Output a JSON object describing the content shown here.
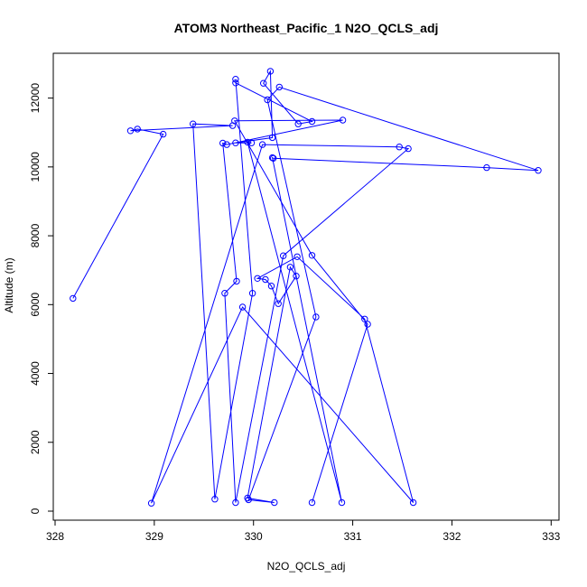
{
  "chart_data": {
    "type": "line",
    "title": "ATOM3 Northeast_Pacific_1 N2O_QCLS_adj",
    "xlabel": "N2O_QCLS_adj",
    "ylabel": "Altitude (m)",
    "xlim": [
      328,
      333
    ],
    "ylim": [
      0,
      13000
    ],
    "x_ticks": [
      328,
      329,
      330,
      331,
      332,
      333
    ],
    "y_ticks": [
      0,
      2000,
      4000,
      6000,
      8000,
      10000,
      12000
    ],
    "grid": false,
    "legend": "none",
    "color": "#0000ff",
    "series": [
      {
        "points": [
          [
            328.18,
            6180
          ],
          [
            329.09,
            10950
          ],
          [
            328.83,
            11100
          ],
          [
            328.76,
            11050
          ],
          [
            329.79,
            11200
          ],
          [
            329.39,
            11250
          ],
          [
            329.61,
            350
          ],
          [
            329.99,
            6330
          ],
          [
            329.82,
            12550
          ],
          [
            329.82,
            12440
          ],
          [
            330.59,
            11320
          ],
          [
            330.45,
            11250
          ],
          [
            330.1,
            12430
          ],
          [
            330.17,
            12780
          ],
          [
            330.19,
            10850
          ],
          [
            329.82,
            10700
          ],
          [
            329.98,
            10700
          ],
          [
            329.94,
            10720
          ],
          [
            330.89,
            250
          ],
          [
            330.19,
            10270
          ],
          [
            330.2,
            10250
          ],
          [
            332.35,
            9980
          ],
          [
            332.87,
            9900
          ],
          [
            330.26,
            12320
          ],
          [
            330.14,
            11950
          ],
          [
            330.63,
            5640
          ],
          [
            329.95,
            330
          ],
          [
            330.21,
            250
          ],
          [
            329.94,
            380
          ],
          [
            330.37,
            7090
          ],
          [
            330.43,
            6830
          ],
          [
            330.25,
            6030
          ],
          [
            330.18,
            6540
          ],
          [
            330.12,
            6730
          ],
          [
            330.04,
            6760
          ],
          [
            330.44,
            7390
          ],
          [
            331.12,
            5580
          ],
          [
            331.61,
            250
          ],
          [
            329.89,
            5930
          ],
          [
            328.97,
            230
          ],
          [
            330.09,
            10650
          ],
          [
            331.47,
            10580
          ],
          [
            331.56,
            10530
          ],
          [
            330.3,
            7420
          ],
          [
            329.82,
            250
          ],
          [
            329.71,
            6330
          ],
          [
            329.83,
            6680
          ],
          [
            329.69,
            10690
          ],
          [
            329.73,
            10650
          ],
          [
            330.9,
            11360
          ],
          [
            329.81,
            11340
          ],
          [
            330.59,
            7430
          ],
          [
            331.15,
            5430
          ],
          [
            330.59,
            250
          ]
        ]
      }
    ]
  }
}
